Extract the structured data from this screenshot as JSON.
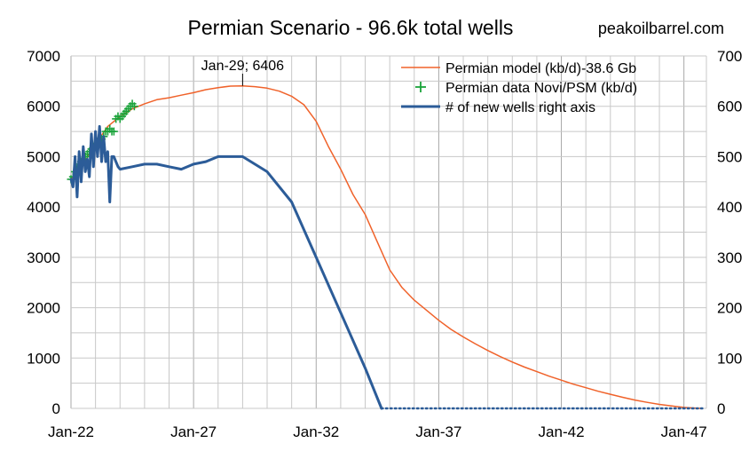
{
  "chart_data": {
    "type": "line",
    "title": "Permian Scenario  - 96.6k total wells",
    "source_text": "peakoilbarrel.com",
    "x_axis": {
      "type": "date",
      "range": [
        "2022-01",
        "2047-12"
      ],
      "tick_labels": [
        "Jan-22",
        "Jan-27",
        "Jan-32",
        "Jan-37",
        "Jan-42",
        "Jan-47"
      ],
      "tick_dates": [
        "2022-01",
        "2027-01",
        "2032-01",
        "2037-01",
        "2042-01",
        "2047-01"
      ]
    },
    "y_left": {
      "range": [
        0,
        7000
      ],
      "ticks": [
        0,
        1000,
        2000,
        3000,
        4000,
        5000,
        6000,
        7000
      ],
      "tick_labels": [
        "0",
        "1000",
        "2000",
        "3000",
        "4000",
        "5000",
        "6000",
        "7000"
      ]
    },
    "y_right": {
      "range": [
        0,
        700
      ],
      "ticks": [
        0,
        100,
        200,
        300,
        400,
        500,
        600,
        700
      ],
      "tick_labels": [
        "0",
        "100",
        "200",
        "300",
        "400",
        "500",
        "600",
        "700"
      ]
    },
    "grid": true,
    "legend_position": "top-right",
    "annotation": {
      "text": "Jan-29; 6406",
      "x": "2029-01",
      "y": 6406
    },
    "series": [
      {
        "name": "Permian model (kb/d)-38.6 Gb",
        "axis": "left",
        "style": "line",
        "color": "#f0622a",
        "points": [
          [
            "2022-01",
            4550
          ],
          [
            "2022-07",
            4850
          ],
          [
            "2023-01",
            5250
          ],
          [
            "2023-07",
            5600
          ],
          [
            "2024-01",
            5800
          ],
          [
            "2024-07",
            5950
          ],
          [
            "2025-01",
            6050
          ],
          [
            "2025-07",
            6130
          ],
          [
            "2026-01",
            6170
          ],
          [
            "2026-07",
            6220
          ],
          [
            "2027-01",
            6270
          ],
          [
            "2027-07",
            6330
          ],
          [
            "2028-01",
            6370
          ],
          [
            "2028-07",
            6400
          ],
          [
            "2029-01",
            6406
          ],
          [
            "2029-07",
            6390
          ],
          [
            "2030-01",
            6360
          ],
          [
            "2030-07",
            6300
          ],
          [
            "2031-01",
            6200
          ],
          [
            "2031-07",
            6030
          ],
          [
            "2032-01",
            5700
          ],
          [
            "2032-07",
            5200
          ],
          [
            "2033-01",
            4750
          ],
          [
            "2033-07",
            4250
          ],
          [
            "2034-01",
            3850
          ],
          [
            "2034-07",
            3300
          ],
          [
            "2035-01",
            2750
          ],
          [
            "2035-07",
            2400
          ],
          [
            "2036-01",
            2150
          ],
          [
            "2036-07",
            1950
          ],
          [
            "2037-01",
            1750
          ],
          [
            "2037-07",
            1570
          ],
          [
            "2038-01",
            1420
          ],
          [
            "2038-07",
            1280
          ],
          [
            "2039-01",
            1150
          ],
          [
            "2039-07",
            1030
          ],
          [
            "2040-01",
            920
          ],
          [
            "2040-07",
            820
          ],
          [
            "2041-01",
            730
          ],
          [
            "2041-07",
            640
          ],
          [
            "2042-01",
            560
          ],
          [
            "2042-07",
            480
          ],
          [
            "2043-01",
            410
          ],
          [
            "2043-07",
            340
          ],
          [
            "2044-01",
            280
          ],
          [
            "2044-07",
            220
          ],
          [
            "2045-01",
            165
          ],
          [
            "2045-07",
            120
          ],
          [
            "2046-01",
            80
          ],
          [
            "2046-07",
            50
          ],
          [
            "2047-01",
            20
          ],
          [
            "2047-07",
            5
          ],
          [
            "2047-10",
            0
          ]
        ]
      },
      {
        "name": "Permian data Novi/PSM (kb/d)",
        "axis": "left",
        "style": "markers",
        "color": "#1aa33a",
        "points": [
          [
            "2022-01",
            4550
          ],
          [
            "2022-02",
            4600
          ],
          [
            "2022-03",
            4700
          ],
          [
            "2022-04",
            4750
          ],
          [
            "2022-05",
            4850
          ],
          [
            "2022-06",
            4900
          ],
          [
            "2022-07",
            4950
          ],
          [
            "2022-08",
            5000
          ],
          [
            "2022-09",
            5050
          ],
          [
            "2022-10",
            5100
          ],
          [
            "2022-11",
            5150
          ],
          [
            "2022-12",
            5200
          ],
          [
            "2023-01",
            5250
          ],
          [
            "2023-02",
            5300
          ],
          [
            "2023-03",
            5300
          ],
          [
            "2023-04",
            5350
          ],
          [
            "2023-05",
            5400
          ],
          [
            "2023-06",
            5500
          ],
          [
            "2023-07",
            5500
          ],
          [
            "2023-08",
            5550
          ],
          [
            "2023-09",
            5500
          ],
          [
            "2023-10",
            5500
          ],
          [
            "2023-11",
            5750
          ],
          [
            "2023-12",
            5800
          ],
          [
            "2024-01",
            5750
          ],
          [
            "2024-02",
            5800
          ],
          [
            "2024-03",
            5850
          ],
          [
            "2024-04",
            5900
          ],
          [
            "2024-05",
            5950
          ],
          [
            "2024-06",
            6000
          ],
          [
            "2024-07",
            6050
          ],
          [
            "2024-08",
            6000
          ]
        ]
      },
      {
        "name": "# of new wells right axis",
        "axis": "right",
        "style": "line",
        "color": "#2c5c98",
        "points": [
          [
            "2022-01",
            455
          ],
          [
            "2022-02",
            440
          ],
          [
            "2022-03",
            500
          ],
          [
            "2022-04",
            420
          ],
          [
            "2022-05",
            510
          ],
          [
            "2022-06",
            450
          ],
          [
            "2022-07",
            520
          ],
          [
            "2022-08",
            470
          ],
          [
            "2022-09",
            495
          ],
          [
            "2022-10",
            460
          ],
          [
            "2022-11",
            545
          ],
          [
            "2022-12",
            480
          ],
          [
            "2023-01",
            550
          ],
          [
            "2023-02",
            500
          ],
          [
            "2023-03",
            560
          ],
          [
            "2023-04",
            490
          ],
          [
            "2023-05",
            540
          ],
          [
            "2023-06",
            490
          ],
          [
            "2023-07",
            510
          ],
          [
            "2023-08",
            410
          ],
          [
            "2023-09",
            500
          ],
          [
            "2023-10",
            500
          ],
          [
            "2023-11",
            490
          ],
          [
            "2023-12",
            480
          ],
          [
            "2024-01",
            475
          ],
          [
            "2024-07",
            480
          ],
          [
            "2025-01",
            485
          ],
          [
            "2025-07",
            485
          ],
          [
            "2026-01",
            480
          ],
          [
            "2026-07",
            475
          ],
          [
            "2027-01",
            485
          ],
          [
            "2027-07",
            490
          ],
          [
            "2028-01",
            500
          ],
          [
            "2028-07",
            500
          ],
          [
            "2029-01",
            500
          ],
          [
            "2030-01",
            470
          ],
          [
            "2031-01",
            410
          ],
          [
            "2032-01",
            300
          ],
          [
            "2033-01",
            190
          ],
          [
            "2034-01",
            80
          ],
          [
            "2034-09",
            0
          ]
        ]
      },
      {
        "name": "",
        "axis": "right",
        "style": "dotted",
        "color": "#2c5c98",
        "points": [
          [
            "2034-09",
            0
          ],
          [
            "2047-10",
            0
          ]
        ]
      }
    ]
  }
}
